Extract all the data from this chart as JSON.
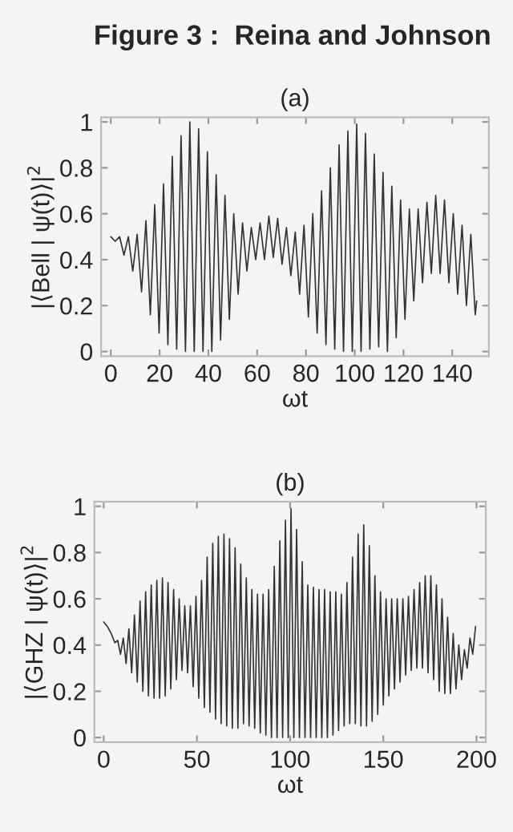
{
  "chart_data": [
    {
      "type": "line",
      "title": "(a)",
      "xlabel": "ωt",
      "ylabel": "|⟨Bell | ψ(t)⟩|$^{2}$",
      "annotations": [
        "Figure 3 :  Reina and Johnson"
      ],
      "xlim": [
        -4,
        155
      ],
      "ylim": [
        -0.02,
        1.02
      ],
      "xticks": [
        0,
        20,
        40,
        60,
        80,
        100,
        120,
        140
      ],
      "yticks": [
        0,
        0.2,
        0.4,
        0.6,
        0.8,
        1
      ],
      "grid": false,
      "legend": false,
      "series": [
        {
          "color": "#333333",
          "x": [
            0,
            1.8,
            3.6,
            5.4,
            7.2,
            9,
            10.8,
            12.6,
            14.4,
            16.2,
            18,
            19.8,
            21.6,
            23.4,
            25.2,
            27,
            28.8,
            30.6,
            32.4,
            34.2,
            36,
            37.8,
            39.6,
            41.4,
            43.2,
            45,
            46.8,
            48.6,
            50.4,
            52.2,
            54,
            55.8,
            57.6,
            59.4,
            61.2,
            63,
            64.8,
            66.6,
            68.4,
            70.2,
            72,
            73.8,
            75.6,
            77.4,
            79.2,
            81,
            82.8,
            84.6,
            86.4,
            88.2,
            90,
            91.8,
            93.6,
            95.4,
            97.2,
            99,
            100.8,
            102.6,
            104.4,
            106.2,
            108,
            109.8,
            111.6,
            113.4,
            115.2,
            117,
            118.8,
            120.6,
            122.4,
            124.2,
            126,
            127.8,
            129.6,
            131.4,
            133.2,
            135,
            136.8,
            138.6,
            140.4,
            142.2,
            144,
            145.8,
            147.6,
            149.4,
            150
          ],
          "values": [
            0.5,
            0.48,
            0.5,
            0.42,
            0.5,
            0.35,
            0.51,
            0.26,
            0.57,
            0.16,
            0.64,
            0.08,
            0.73,
            0.03,
            0.85,
            0.01,
            0.94,
            0.0,
            1.0,
            0.0,
            0.97,
            0.0,
            0.87,
            0.0,
            0.77,
            0.05,
            0.68,
            0.14,
            0.6,
            0.25,
            0.56,
            0.35,
            0.54,
            0.4,
            0.56,
            0.4,
            0.59,
            0.41,
            0.58,
            0.38,
            0.54,
            0.33,
            0.52,
            0.25,
            0.55,
            0.15,
            0.6,
            0.08,
            0.7,
            0.03,
            0.8,
            0.01,
            0.9,
            0.0,
            0.96,
            0.0,
            0.99,
            0.0,
            0.95,
            0.01,
            0.86,
            0.02,
            0.78,
            0.0,
            0.72,
            0.06,
            0.66,
            0.14,
            0.62,
            0.22,
            0.62,
            0.3,
            0.65,
            0.34,
            0.68,
            0.34,
            0.66,
            0.3,
            0.6,
            0.25,
            0.55,
            0.2,
            0.51,
            0.16,
            0.22
          ]
        }
      ]
    },
    {
      "type": "line",
      "title": "(b)",
      "xlabel": "ωt",
      "ylabel": "|⟨GHZ | ψ(t)⟩|$^{2}$",
      "xlim": [
        -5,
        205
      ],
      "ylim": [
        -0.02,
        1.02
      ],
      "xticks": [
        0,
        50,
        100,
        150,
        200
      ],
      "yticks": [
        0,
        0.2,
        0.4,
        0.6,
        0.8,
        1
      ],
      "grid": false,
      "legend": false,
      "series": [
        {
          "color": "#333333",
          "x": [
            0,
            2,
            4,
            6,
            7.5,
            9,
            10.5,
            12,
            13.5,
            15,
            16.5,
            18,
            19.5,
            21,
            22.5,
            24,
            25.5,
            27,
            28.5,
            30,
            31.5,
            33,
            34.5,
            36,
            37.5,
            39,
            40.5,
            42,
            43.5,
            45,
            46.5,
            48,
            49.5,
            51,
            52.5,
            54,
            55.5,
            57,
            58.5,
            60,
            61.5,
            63,
            64.5,
            66,
            67.5,
            69,
            70.5,
            72,
            73.5,
            75,
            76.5,
            78,
            79.5,
            81,
            82.5,
            84,
            85.5,
            87,
            88.5,
            90,
            91.5,
            93,
            94.5,
            96,
            97.5,
            99,
            100.5,
            102,
            103.5,
            105,
            106.5,
            108,
            109.5,
            111,
            112.5,
            114,
            115.5,
            117,
            118.5,
            120,
            121.5,
            123,
            124.5,
            126,
            127.5,
            129,
            130.5,
            132,
            133.5,
            135,
            136.5,
            138,
            139.5,
            141,
            142.5,
            144,
            145.5,
            147,
            148.5,
            150,
            151.5,
            153,
            154.5,
            156,
            157.5,
            159,
            160.5,
            162,
            163.5,
            165,
            166.5,
            168,
            169.5,
            171,
            172.5,
            174,
            175.5,
            177,
            178.5,
            180,
            181.5,
            183,
            184.5,
            186,
            187.5,
            189,
            190.5,
            192,
            193.5,
            195,
            196.5,
            198,
            199.5
          ],
          "values": [
            0.5,
            0.48,
            0.45,
            0.41,
            0.42,
            0.36,
            0.43,
            0.32,
            0.47,
            0.28,
            0.53,
            0.24,
            0.59,
            0.2,
            0.63,
            0.18,
            0.66,
            0.17,
            0.68,
            0.17,
            0.69,
            0.18,
            0.67,
            0.21,
            0.64,
            0.25,
            0.6,
            0.29,
            0.57,
            0.28,
            0.57,
            0.22,
            0.61,
            0.17,
            0.68,
            0.13,
            0.78,
            0.11,
            0.84,
            0.08,
            0.87,
            0.06,
            0.88,
            0.05,
            0.86,
            0.04,
            0.82,
            0.04,
            0.75,
            0.06,
            0.69,
            0.05,
            0.64,
            0.04,
            0.62,
            0.02,
            0.62,
            0.01,
            0.64,
            0.0,
            0.74,
            0.0,
            0.85,
            0.0,
            0.94,
            0.0,
            0.99,
            0.0,
            0.9,
            0.0,
            0.76,
            0.0,
            0.66,
            0.0,
            0.65,
            0.0,
            0.64,
            0.0,
            0.64,
            0.0,
            0.63,
            0.01,
            0.63,
            0.03,
            0.62,
            0.05,
            0.67,
            0.06,
            0.78,
            0.06,
            0.88,
            0.05,
            0.92,
            0.05,
            0.83,
            0.07,
            0.7,
            0.1,
            0.63,
            0.14,
            0.6,
            0.18,
            0.6,
            0.21,
            0.6,
            0.24,
            0.6,
            0.27,
            0.61,
            0.29,
            0.64,
            0.3,
            0.67,
            0.3,
            0.7,
            0.28,
            0.7,
            0.25,
            0.66,
            0.2,
            0.6,
            0.19,
            0.52,
            0.19,
            0.45,
            0.21,
            0.4,
            0.25,
            0.38,
            0.3,
            0.43,
            0.36,
            0.48
          ]
        }
      ]
    }
  ]
}
